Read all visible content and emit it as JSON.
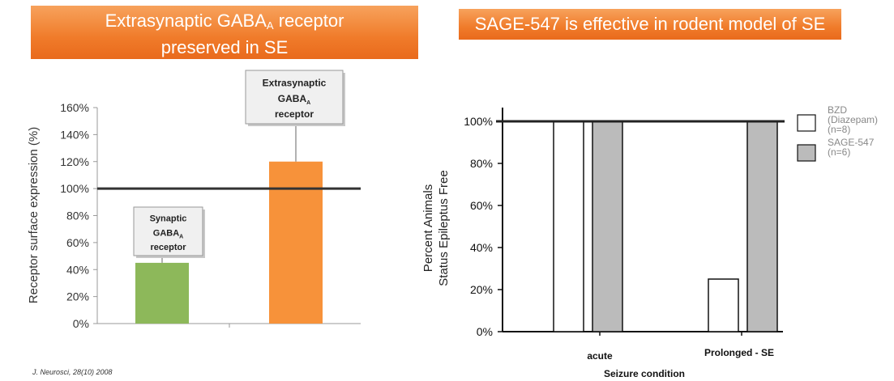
{
  "left_panel": {
    "banner": {
      "line1_pre": "Extrasynaptic GABA",
      "line1_sub": "A",
      "line1_post": " receptor",
      "line2": "preserved in SE"
    },
    "citation": "J. Neurosci, 28(10) 2008"
  },
  "right_panel": {
    "banner": {
      "text": "SAGE-547 is effective in rodent model of SE"
    }
  },
  "chart_data": [
    {
      "type": "bar",
      "ylabel": "Receptor surface expression (%)",
      "xlabel": "",
      "ylim": [
        0,
        160
      ],
      "yticks": [
        "0%",
        "20%",
        "40%",
        "60%",
        "80%",
        "100%",
        "120%",
        "140%",
        "160%"
      ],
      "reference_line": 100,
      "grid": false,
      "categories": [
        "Synaptic GABAA receptor",
        "Extrasynaptic GABAA receptor"
      ],
      "values": [
        45,
        120
      ],
      "colors": [
        "#8db85a",
        "#f7923a"
      ],
      "callouts": [
        {
          "pre": "Synaptic",
          "mid": "GABA",
          "sub": "A",
          "post": "receptor"
        },
        {
          "pre": "Extrasynaptic",
          "mid": "GABA",
          "sub": "A",
          "post": "receptor"
        }
      ]
    },
    {
      "type": "bar",
      "ylabel_line1": "Percent Animals",
      "ylabel_line2": "Status Epileptus Free",
      "xlabel": "Seizure condition",
      "ylim": [
        0,
        100
      ],
      "yticks": [
        "0%",
        "20%",
        "40%",
        "60%",
        "80%",
        "100%"
      ],
      "reference_line": 100,
      "grid": false,
      "categories": [
        "acute",
        "Prolonged - SE"
      ],
      "series": [
        {
          "name": "BZD (Diazepam) (n=8)",
          "legend_lines": [
            "BZD",
            "(Diazepam)",
            "(n=8)"
          ],
          "values": [
            100,
            25
          ],
          "color": "#ffffff"
        },
        {
          "name": "SAGE-547 (n=6)",
          "legend_lines": [
            "SAGE-547",
            "(n=6)"
          ],
          "values": [
            100,
            100
          ],
          "color": "#bbbbbb"
        }
      ],
      "legend_position": "right"
    }
  ]
}
